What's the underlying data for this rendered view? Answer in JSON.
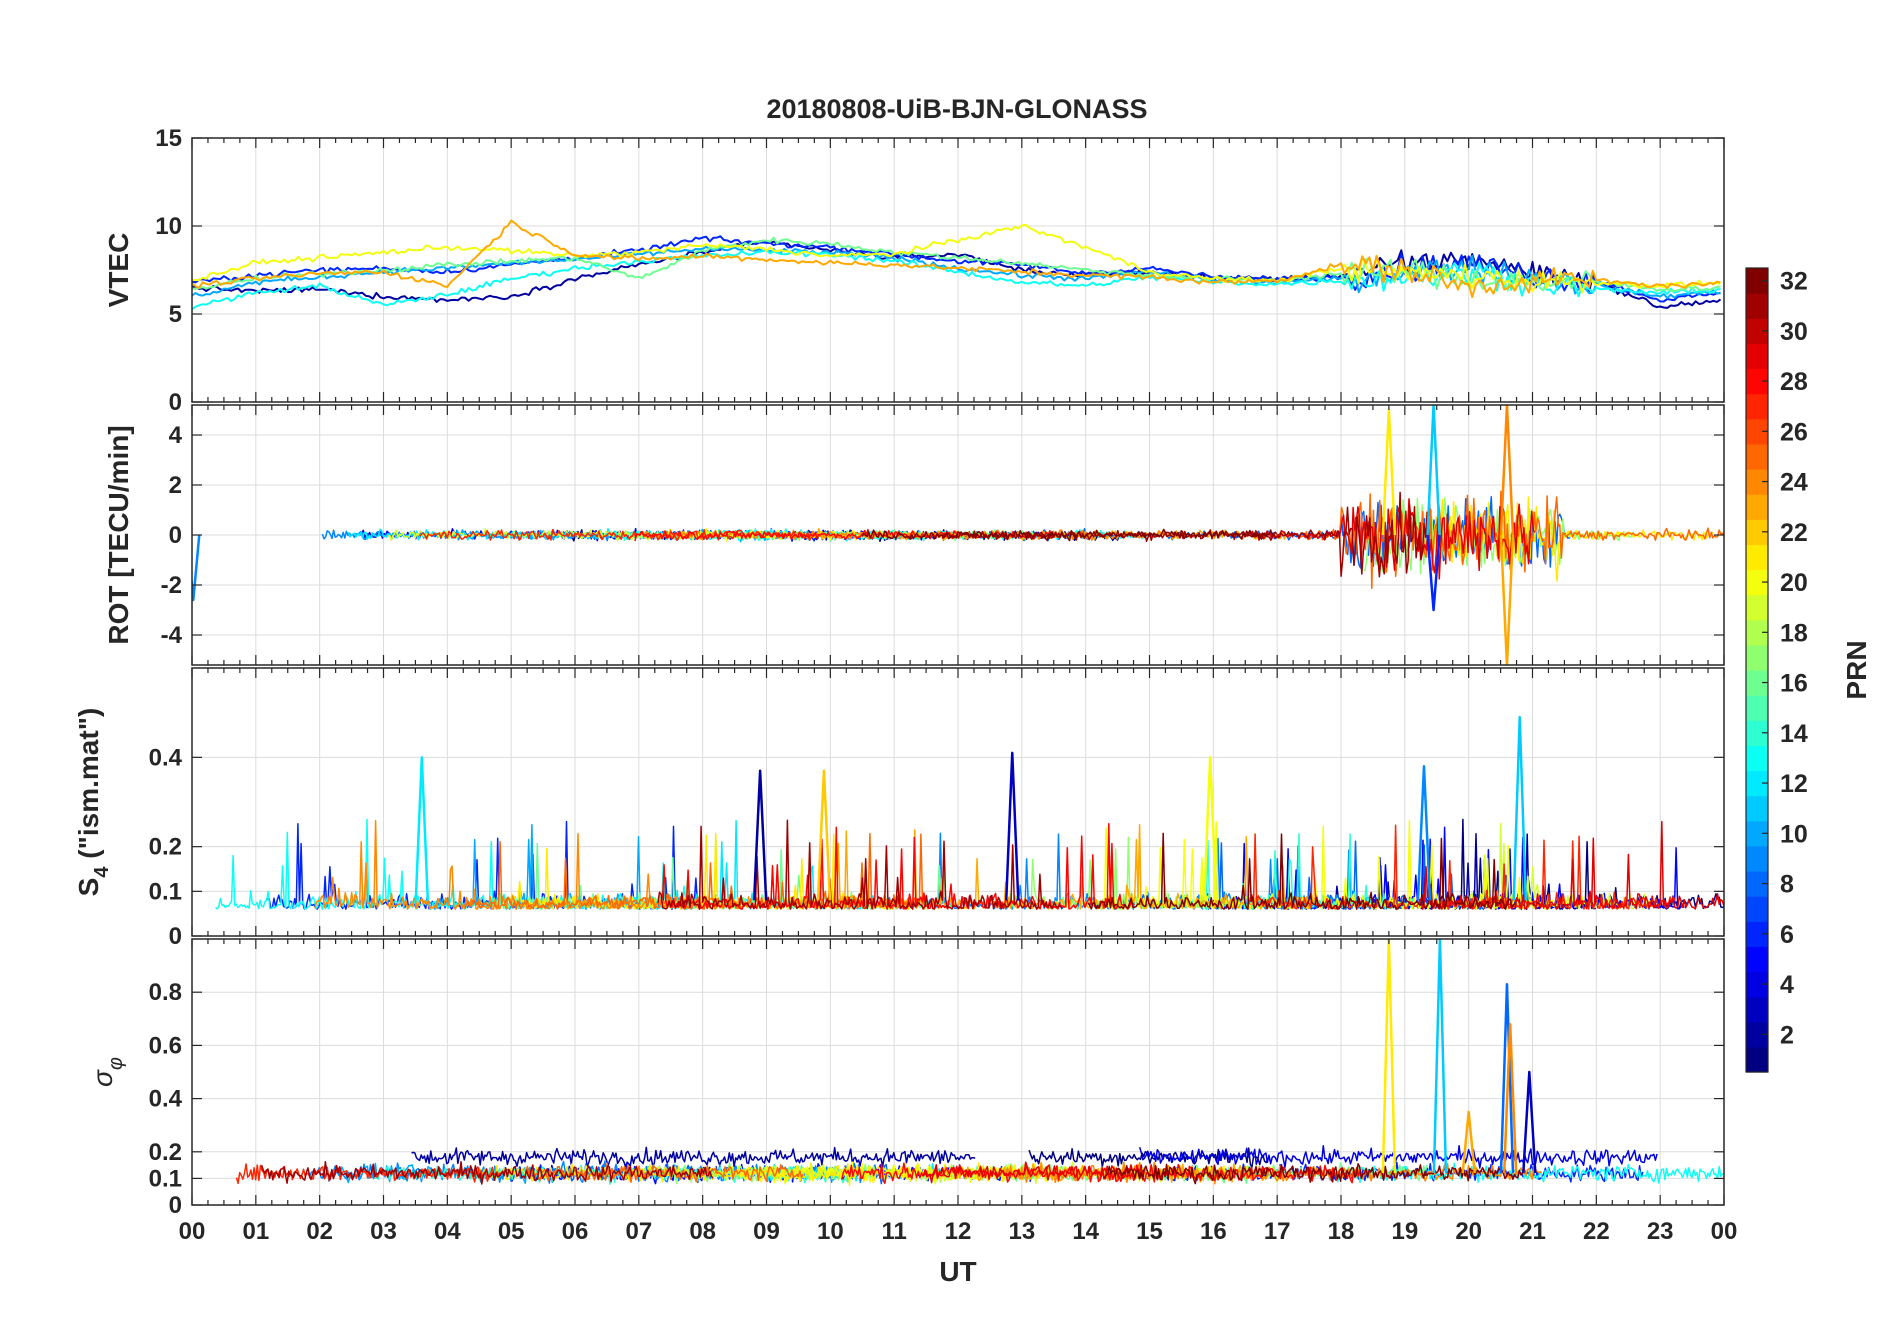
{
  "chart_data": [
    {
      "type": "line",
      "title": "20180808-UiB-BJN-GLONASS",
      "xlabel": "",
      "ylabel": "VTEC",
      "xlim": [
        0,
        24
      ],
      "ylim": [
        0,
        15
      ],
      "yticks": [
        0,
        5,
        10,
        15
      ],
      "grid": true,
      "series_count": 24,
      "color_by": "PRN",
      "series": [
        {
          "prn": 2,
          "x": [
            0,
            1,
            2,
            3,
            4,
            5,
            6,
            7,
            8,
            9,
            10,
            11,
            12,
            13,
            14,
            15,
            16,
            17,
            18,
            19,
            20,
            21,
            22,
            23,
            24
          ],
          "y": [
            6.5,
            6.3,
            6.4,
            6.0,
            5.8,
            6.0,
            7.0,
            7.8,
            8.5,
            9.1,
            8.6,
            8.2,
            8.4,
            7.5,
            7.2,
            7.4,
            7.0,
            7.0,
            7.2,
            7.8,
            8.2,
            7.4,
            6.8,
            5.4,
            5.8
          ]
        },
        {
          "prn": 6,
          "x": [
            0,
            1,
            2,
            3,
            4,
            5,
            6,
            7,
            8,
            9,
            10,
            11,
            12,
            13,
            14,
            15,
            16,
            17,
            18,
            19,
            20,
            21,
            22,
            23,
            24
          ],
          "y": [
            6.8,
            7.2,
            7.5,
            7.6,
            7.4,
            7.8,
            8.2,
            8.6,
            9.3,
            9.0,
            8.8,
            8.4,
            8.0,
            7.8,
            7.3,
            7.6,
            7.1,
            7.0,
            7.1,
            7.6,
            7.9,
            7.2,
            6.9,
            5.8,
            6.2
          ]
        },
        {
          "prn": 10,
          "x": [
            0,
            1,
            2,
            3,
            4,
            5,
            6,
            7,
            8,
            9,
            10,
            11,
            12,
            13,
            14,
            15,
            16,
            17,
            18,
            19,
            20,
            21,
            22,
            23,
            24
          ],
          "y": [
            6.0,
            6.8,
            7.1,
            7.4,
            7.6,
            7.9,
            8.1,
            8.4,
            8.7,
            8.6,
            8.5,
            8.2,
            7.6,
            7.2,
            7.0,
            7.4,
            6.9,
            6.8,
            7.0,
            7.4,
            7.7,
            7.1,
            6.6,
            6.0,
            6.3
          ]
        },
        {
          "prn": 13,
          "x": [
            0,
            1,
            2,
            3,
            4,
            5,
            6,
            7,
            8,
            9,
            10,
            11,
            12,
            13,
            14,
            15,
            16,
            17,
            18,
            19,
            20,
            21,
            22,
            23,
            24
          ],
          "y": [
            5.4,
            6.2,
            6.6,
            5.5,
            6.1,
            7.0,
            7.6,
            8.0,
            8.3,
            8.5,
            8.4,
            8.0,
            7.4,
            6.8,
            6.6,
            7.1,
            6.8,
            6.7,
            6.9,
            7.1,
            7.4,
            6.9,
            6.4,
            6.2,
            6.4
          ]
        },
        {
          "prn": 16,
          "x": [
            0,
            1,
            2,
            3,
            4,
            5,
            6,
            7,
            8,
            9,
            10,
            11,
            12,
            13,
            14,
            15,
            16,
            17,
            18,
            19,
            20,
            21,
            22,
            23,
            24
          ],
          "y": [
            6.4,
            7.0,
            7.3,
            7.5,
            7.8,
            8.0,
            8.2,
            7.0,
            8.6,
            9.2,
            9.0,
            8.5,
            8.2,
            7.9,
            7.5,
            7.2,
            7.0,
            6.9,
            7.3,
            7.5,
            7.0,
            6.8,
            6.8,
            6.4,
            6.5
          ]
        },
        {
          "prn": 20,
          "x": [
            0,
            1,
            2,
            3,
            4,
            5,
            6,
            7,
            8,
            9,
            10,
            11,
            12,
            13,
            14,
            15,
            16,
            17,
            18,
            19,
            20,
            21,
            22,
            23,
            24
          ],
          "y": [
            6.9,
            7.9,
            8.2,
            8.5,
            8.8,
            8.6,
            8.3,
            8.5,
            8.9,
            8.7,
            8.3,
            8.4,
            9.2,
            10.0,
            8.8,
            7.4,
            7.0,
            6.9,
            7.6,
            7.3,
            7.2,
            6.9,
            6.8,
            6.6,
            6.8
          ]
        },
        {
          "prn": 23,
          "x": [
            0,
            1,
            2,
            3,
            4,
            5,
            6,
            7,
            8,
            9,
            10,
            11,
            12,
            13,
            14,
            15,
            16,
            17,
            18,
            19,
            20,
            21,
            22,
            23,
            24
          ],
          "y": [
            6.6,
            7.0,
            7.3,
            7.4,
            6.6,
            10.2,
            8.4,
            8.1,
            8.3,
            8.1,
            7.9,
            7.8,
            7.6,
            7.4,
            7.2,
            7.1,
            6.8,
            6.9,
            7.8,
            7.5,
            6.5,
            7.0,
            6.9,
            6.6,
            6.7
          ]
        }
      ]
    },
    {
      "type": "line",
      "xlabel": "",
      "ylabel": "ROT [TECU/min]",
      "xlim": [
        0,
        24
      ],
      "ylim": [
        -5.2,
        5.2
      ],
      "yticks": [
        -4,
        -2,
        0,
        2,
        4
      ],
      "grid": true,
      "series_count": 24,
      "color_by": "PRN",
      "notable_peaks": [
        {
          "x": 18.75,
          "y": 5.0,
          "prn": 21
        },
        {
          "x": 19.45,
          "y": 5.2,
          "prn": 11
        },
        {
          "x": 19.45,
          "y": -3.0,
          "prn": 6
        },
        {
          "x": 20.6,
          "y": 5.2,
          "prn": 24
        },
        {
          "x": 20.6,
          "y": -5.2,
          "prn": 23
        },
        {
          "x": 0.02,
          "y": -2.6,
          "prn": 9
        }
      ]
    },
    {
      "type": "line",
      "xlabel": "",
      "ylabel": "S_4 (\"ism.mat\")",
      "ylabel_main": "S",
      "ylabel_sub": "4",
      "ylabel_rest": " (\"ism.mat\")",
      "xlim": [
        0,
        24
      ],
      "ylim": [
        0,
        0.6
      ],
      "yticks": [
        0,
        0.1,
        0.2,
        0.4
      ],
      "grid": true,
      "series_count": 24,
      "color_by": "PRN",
      "notable_peaks": [
        {
          "x": 20.8,
          "y": 0.49,
          "prn": 11
        },
        {
          "x": 12.85,
          "y": 0.41,
          "prn": 3
        },
        {
          "x": 3.6,
          "y": 0.4,
          "prn": 12
        },
        {
          "x": 15.95,
          "y": 0.4,
          "prn": 20
        },
        {
          "x": 9.9,
          "y": 0.37,
          "prn": 22
        },
        {
          "x": 8.9,
          "y": 0.37,
          "prn": 2
        },
        {
          "x": 19.3,
          "y": 0.38,
          "prn": 9
        }
      ]
    },
    {
      "type": "line",
      "xlabel": "UT",
      "ylabel": "σ_φ",
      "ylabel_main": "σ",
      "ylabel_sub": "φ",
      "xlim": [
        0,
        24
      ],
      "ylim": [
        0,
        1
      ],
      "yticks": [
        0,
        0.1,
        0.2,
        0.4,
        0.6,
        0.8
      ],
      "xticks": [
        "00",
        "01",
        "02",
        "03",
        "04",
        "05",
        "06",
        "07",
        "08",
        "09",
        "10",
        "11",
        "12",
        "13",
        "14",
        "15",
        "16",
        "17",
        "18",
        "19",
        "20",
        "21",
        "22",
        "23",
        "00"
      ],
      "grid": true,
      "series_count": 24,
      "color_by": "PRN",
      "notable_peaks": [
        {
          "x": 18.75,
          "y": 1.0,
          "prn": 21
        },
        {
          "x": 19.55,
          "y": 1.0,
          "prn": 11
        },
        {
          "x": 20.6,
          "y": 0.83,
          "prn": 8
        },
        {
          "x": 20.65,
          "y": 0.68,
          "prn": 24
        },
        {
          "x": 20.95,
          "y": 0.5,
          "prn": 3
        },
        {
          "x": 20.0,
          "y": 0.35,
          "prn": 23
        }
      ]
    }
  ],
  "colorbar": {
    "label": "PRN",
    "range": [
      1,
      32
    ],
    "ticks": [
      "2",
      "4",
      "6",
      "8",
      "10",
      "12",
      "14",
      "16",
      "18",
      "20",
      "22",
      "24",
      "26",
      "28",
      "30",
      "32"
    ],
    "colormap": "jet"
  }
}
